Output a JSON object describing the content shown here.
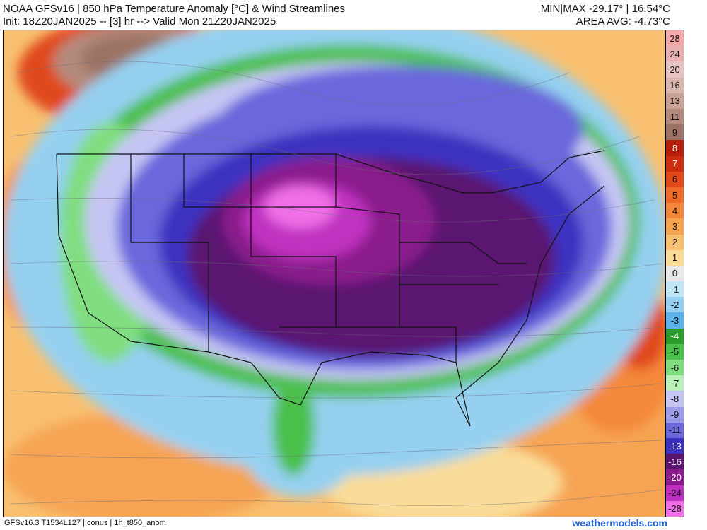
{
  "header": {
    "title": "NOAA GFSv16 | 850 hPa Temperature Anomaly [°C] & Wind Streamlines",
    "subtitle": "Init: 18Z20JAN2025 -- [3] hr --> Valid Mon 21Z20JAN2025",
    "minmax": "MIN|MAX -29.17° | 16.54°C",
    "area_avg": "AREA AVG: -4.73°C"
  },
  "map": {
    "field": "850 hPa Temperature Anomaly",
    "overlay": "Wind Streamlines",
    "region": "conus",
    "features": [
      "state-borders",
      "country-borders",
      "coastlines",
      "wind-streamlines"
    ]
  },
  "legend": {
    "unit": "°C",
    "items": [
      {
        "label": "28",
        "color": "#f4a8a8"
      },
      {
        "label": "24",
        "color": "#e8b0b0"
      },
      {
        "label": "20",
        "color": "#e7c4c4"
      },
      {
        "label": "16",
        "color": "#d8b6ae"
      },
      {
        "label": "13",
        "color": "#c9a295"
      },
      {
        "label": "11",
        "color": "#b48a7c"
      },
      {
        "label": "9",
        "color": "#9c7264"
      },
      {
        "label": "8",
        "color": "#b41e0a"
      },
      {
        "label": "7",
        "color": "#cc2c10"
      },
      {
        "label": "6",
        "color": "#e0481a"
      },
      {
        "label": "5",
        "color": "#ee6a28"
      },
      {
        "label": "4",
        "color": "#f4883a"
      },
      {
        "label": "3",
        "color": "#f6a452"
      },
      {
        "label": "2",
        "color": "#f8c070"
      },
      {
        "label": "1",
        "color": "#fadc98"
      },
      {
        "label": "0",
        "color": "#e8e8e8"
      },
      {
        "label": "-1",
        "color": "#bfe4f4"
      },
      {
        "label": "-2",
        "color": "#95d0f0"
      },
      {
        "label": "-3",
        "color": "#5eb2ec"
      },
      {
        "label": "-4",
        "color": "#2a9a2a"
      },
      {
        "label": "-5",
        "color": "#4cc04c"
      },
      {
        "label": "-6",
        "color": "#80de80"
      },
      {
        "label": "-7",
        "color": "#b8f0b8"
      },
      {
        "label": "-8",
        "color": "#c6c6f4"
      },
      {
        "label": "-9",
        "color": "#9c9ce8"
      },
      {
        "label": "-11",
        "color": "#6a68dc"
      },
      {
        "label": "-13",
        "color": "#3c30c0"
      },
      {
        "label": "-16",
        "color": "#5a1470"
      },
      {
        "label": "-20",
        "color": "#8a1a8c"
      },
      {
        "label": "-24",
        "color": "#c030c0"
      },
      {
        "label": "-28",
        "color": "#f070e8"
      }
    ]
  },
  "footer": {
    "run_info": "GFSv16.3 T1534L127 | conus | 1h_t850_anom",
    "credit": "weathermodels.com"
  }
}
